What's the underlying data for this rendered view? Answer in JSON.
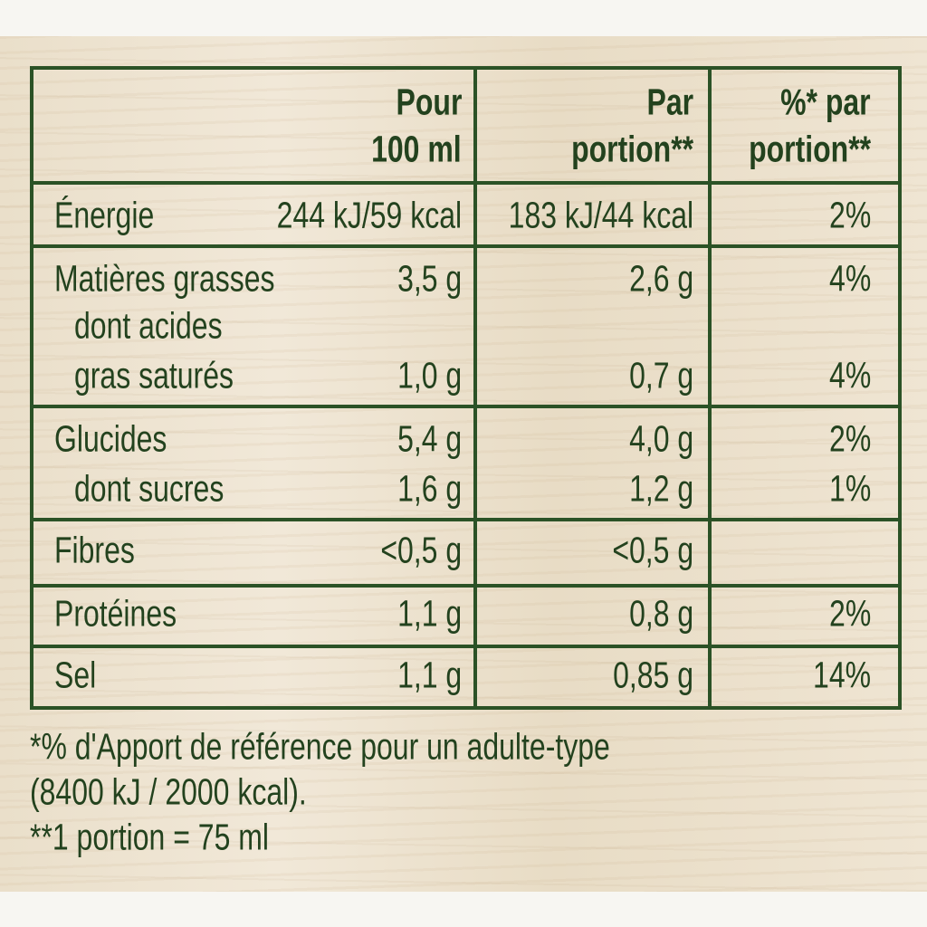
{
  "header": {
    "columns": [
      [
        "Pour",
        "100 ml"
      ],
      [
        "Par",
        "portion**"
      ],
      [
        "%* par",
        "portion**"
      ]
    ]
  },
  "table": {
    "groups": [
      [
        {
          "label": [
            "Énergie"
          ],
          "per_100ml": "244 kJ/59 kcal",
          "per_portion": "183 kJ/44 kcal",
          "ri": "2%"
        }
      ],
      [
        {
          "label": [
            "Matières grasses"
          ],
          "per_100ml": "3,5 g",
          "per_portion": "2,6 g",
          "ri": "4%"
        },
        {
          "label": [
            "dont acides",
            "gras saturés"
          ],
          "per_100ml": "1,0 g",
          "per_portion": "0,7 g",
          "ri": "4%"
        }
      ],
      [
        {
          "label": [
            "Glucides"
          ],
          "per_100ml": "5,4 g",
          "per_portion": "4,0 g",
          "ri": "2%"
        },
        {
          "label": [
            "dont sucres"
          ],
          "per_100ml": "1,6 g",
          "per_portion": "1,2 g",
          "ri": "1%"
        }
      ],
      [
        {
          "label": [
            "Fibres"
          ],
          "per_100ml": "<0,5 g",
          "per_portion": "<0,5 g"
        }
      ],
      [
        {
          "label": [
            "Protéines"
          ],
          "per_100ml": "1,1 g",
          "per_portion": "0,8 g",
          "ri": "2%"
        }
      ],
      [
        {
          "label": [
            "Sel"
          ],
          "per_100ml": "1,1 g",
          "per_portion": "0,85 g",
          "ri": "14%"
        }
      ]
    ]
  },
  "footnotes": [
    "*% d'Apport de référence pour un adulte-type",
    "(8400 kJ / 2000 kcal).",
    "**1 portion = 75 ml"
  ]
}
